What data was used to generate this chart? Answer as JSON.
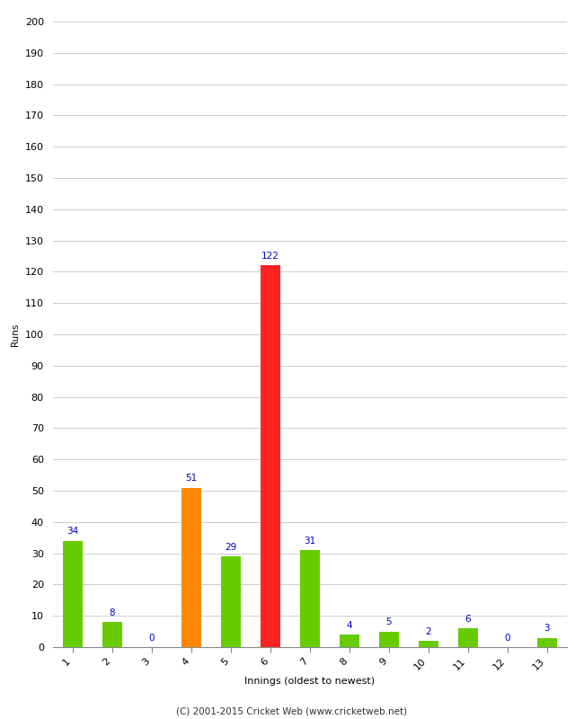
{
  "xlabel": "Innings (oldest to newest)",
  "ylabel": "Runs",
  "categories": [
    "1",
    "2",
    "3",
    "4",
    "5",
    "6",
    "7",
    "8",
    "9",
    "10",
    "11",
    "12",
    "13"
  ],
  "values": [
    34,
    8,
    0,
    51,
    29,
    122,
    31,
    4,
    5,
    2,
    6,
    0,
    3
  ],
  "bar_colors": [
    "#66cc00",
    "#66cc00",
    "#66cc00",
    "#ff8800",
    "#66cc00",
    "#ff2222",
    "#66cc00",
    "#66cc00",
    "#66cc00",
    "#66cc00",
    "#66cc00",
    "#66cc00",
    "#66cc00"
  ],
  "label_color": "#0000cc",
  "ylim": [
    0,
    200
  ],
  "yticks": [
    0,
    10,
    20,
    30,
    40,
    50,
    60,
    70,
    80,
    90,
    100,
    110,
    120,
    130,
    140,
    150,
    160,
    170,
    180,
    190,
    200
  ],
  "background_color": "#ffffff",
  "grid_color": "#cccccc",
  "footer": "(C) 2001-2015 Cricket Web (www.cricketweb.net)",
  "label_fontsize": 7.5,
  "axis_tick_fontsize": 8,
  "ylabel_fontsize": 7.5,
  "xlabel_fontsize": 8,
  "footer_fontsize": 7.5
}
